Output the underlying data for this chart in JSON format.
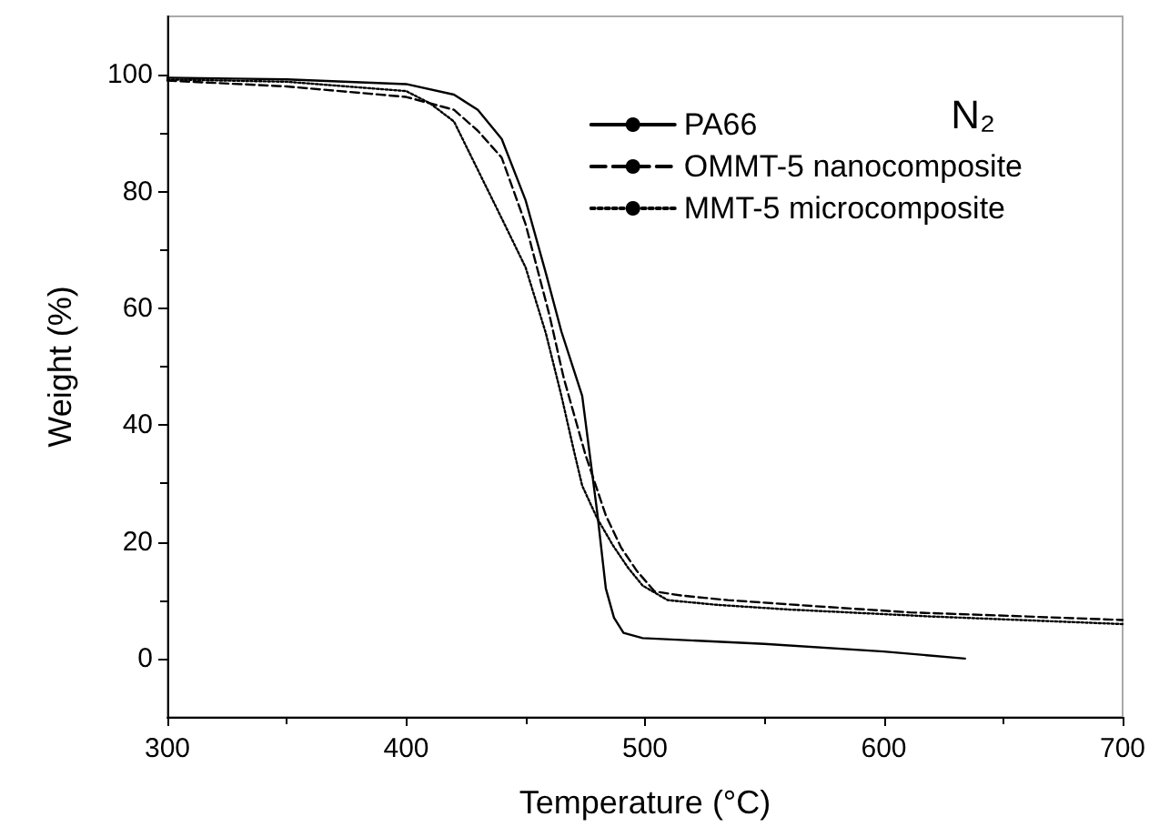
{
  "chart_data": {
    "type": "line",
    "xlabel": "Temperature (°C)",
    "ylabel": "Weight (%)",
    "annotations": [
      "N₂"
    ],
    "xlim": [
      300,
      700
    ],
    "xticks": [
      300,
      400,
      500,
      600,
      700
    ],
    "ylim": [
      -10,
      110
    ],
    "yticks": [
      0,
      20,
      40,
      60,
      80,
      100
    ],
    "grid": false,
    "legend": "top right",
    "marker": "none",
    "series": [
      {
        "name": "PA66",
        "color": "#000000",
        "line_style": "solid",
        "x": [
          300,
          350,
          400,
          420,
          430,
          440,
          450,
          458.5,
          465,
          473.7,
          480,
          483.6,
          487,
          491,
          499,
          550,
          600,
          634
        ],
        "values": [
          99.5,
          99.2,
          98.4,
          96.6,
          94,
          89,
          78.5,
          66,
          56,
          45,
          25,
          12,
          7,
          4.4,
          3.5,
          2.5,
          1.2,
          0
        ]
      },
      {
        "name": "OMMT-5 nanocomposite",
        "color": "#000000",
        "line_style": "dashed",
        "x": [
          300,
          350,
          400,
          420,
          430,
          440,
          450,
          460,
          466,
          475,
          483.6,
          490,
          496.6,
          504,
          515,
          534.7,
          570,
          611,
          660,
          700
        ],
        "values": [
          99,
          98,
          96.2,
          94,
          90.4,
          85.8,
          74.4,
          58.8,
          48,
          35,
          24.5,
          19,
          15,
          11.5,
          10.8,
          10,
          9,
          7.9,
          7.2,
          6.6
        ]
      },
      {
        "name": "MMT-5 microcomposite",
        "color": "#000000",
        "line_style": "dotted",
        "x": [
          300,
          350,
          400,
          410,
          420,
          430,
          440,
          450,
          458.5,
          465,
          470,
          473.7,
          480,
          486.7,
          493,
          499,
          509.5,
          530,
          560,
          620,
          700
        ],
        "values": [
          99.2,
          98.8,
          97.2,
          95.1,
          92,
          83.7,
          75.4,
          67,
          55.7,
          45,
          36,
          29.6,
          24,
          19.3,
          15.5,
          12.5,
          10,
          9.2,
          8.4,
          7.2,
          5.9
        ]
      }
    ]
  }
}
